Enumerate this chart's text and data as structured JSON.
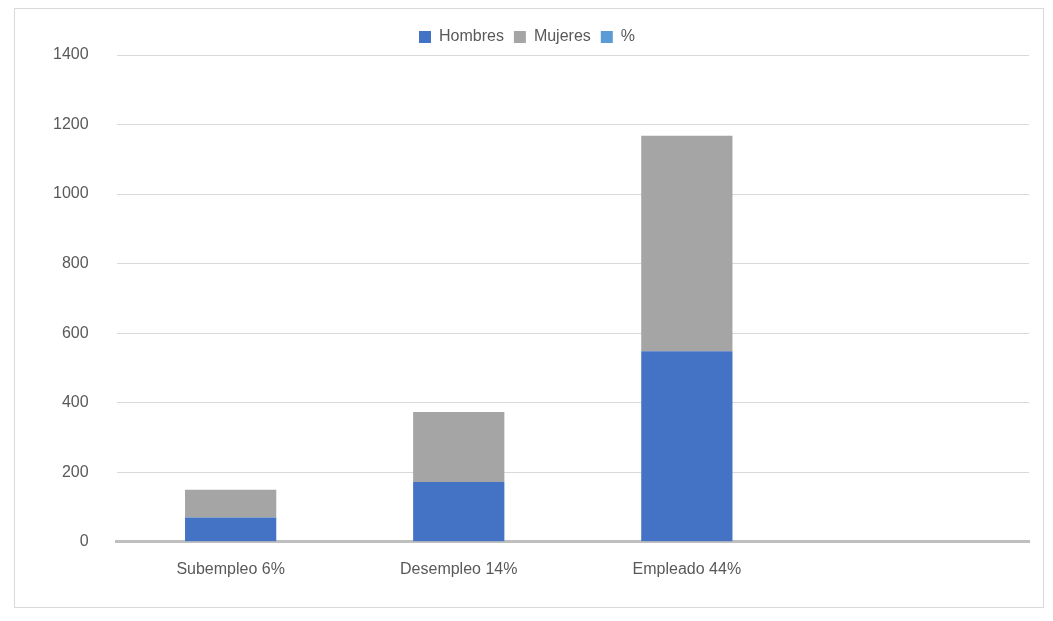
{
  "chart_data": {
    "type": "bar",
    "stacked": true,
    "categories": [
      "Subempleo 6%",
      "Desempleo 14%",
      "Empleado 44%",
      null
    ],
    "series": [
      {
        "name": "Hombres",
        "color": "#4472c4",
        "values": [
          70,
          172,
          548,
          null
        ]
      },
      {
        "name": "Mujeres",
        "color": "#a5a5a5",
        "values": [
          80,
          201,
          620,
          null
        ]
      },
      {
        "name": "%",
        "color": "#5b9bd5",
        "values": [
          null,
          null,
          null,
          null
        ]
      }
    ],
    "ylim": [
      0,
      1400
    ],
    "yticks": [
      0,
      200,
      400,
      600,
      800,
      1000,
      1200,
      1400
    ],
    "grid": "y",
    "legend": "top"
  }
}
